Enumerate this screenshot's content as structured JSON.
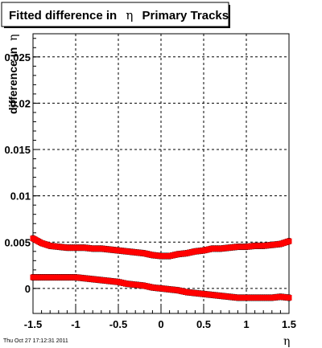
{
  "chart_data": {
    "type": "scatter",
    "title_main": "Fitted difference in",
    "title_symbol": "η",
    "title_rest": "Primary Tracks",
    "ylabel_main": "difference in",
    "ylabel_symbol": "η",
    "xlabel_symbol": "η",
    "xlim": [
      -1.5,
      1.5
    ],
    "ylim": [
      -0.0027,
      0.0275
    ],
    "grid": true,
    "x_ticks": [
      -1.5,
      -1,
      -0.5,
      0,
      0.5,
      1,
      1.5
    ],
    "x_tick_labels": [
      "-1.5",
      "-1",
      "-0.5",
      "0",
      "0.5",
      "1",
      "1.5"
    ],
    "y_ticks": [
      0,
      0.005,
      0.01,
      0.015,
      0.02,
      0.025
    ],
    "y_tick_labels": [
      "0",
      "0.005",
      "0.01",
      "0.015",
      "0.02",
      "0.025"
    ],
    "series": [
      {
        "color": "#ff0000",
        "band_color": "#000000",
        "x": [
          -1.5,
          -1.4,
          -1.3,
          -1.2,
          -1.1,
          -1.0,
          -0.9,
          -0.8,
          -0.7,
          -0.6,
          -0.5,
          -0.4,
          -0.3,
          -0.2,
          -0.1,
          0.0,
          0.1,
          0.2,
          0.3,
          0.4,
          0.5,
          0.6,
          0.7,
          0.8,
          0.9,
          1.0,
          1.1,
          1.2,
          1.3,
          1.4,
          1.5
        ],
        "y": [
          0.0054,
          0.0049,
          0.0046,
          0.0045,
          0.0044,
          0.0044,
          0.0044,
          0.0043,
          0.0043,
          0.0042,
          0.0041,
          0.004,
          0.0039,
          0.0038,
          0.0036,
          0.0035,
          0.0035,
          0.0037,
          0.0038,
          0.004,
          0.0041,
          0.0043,
          0.0043,
          0.0044,
          0.0045,
          0.0045,
          0.0046,
          0.0046,
          0.0047,
          0.0048,
          0.0051
        ]
      },
      {
        "color": "#ff0000",
        "band_color": "#000000",
        "x": [
          -1.5,
          -1.4,
          -1.3,
          -1.2,
          -1.1,
          -1.0,
          -0.9,
          -0.8,
          -0.7,
          -0.6,
          -0.5,
          -0.4,
          -0.3,
          -0.2,
          -0.1,
          0.0,
          0.1,
          0.2,
          0.3,
          0.4,
          0.5,
          0.6,
          0.7,
          0.8,
          0.9,
          1.0,
          1.1,
          1.2,
          1.3,
          1.4,
          1.5
        ],
        "y": [
          0.0012,
          0.0012,
          0.0012,
          0.0012,
          0.0012,
          0.0012,
          0.0011,
          0.001,
          0.0009,
          0.0008,
          0.0007,
          0.0005,
          0.0004,
          0.0003,
          0.0001,
          0.0,
          -0.0001,
          -0.0002,
          -0.0004,
          -0.0005,
          -0.0006,
          -0.0007,
          -0.0008,
          -0.0009,
          -0.001,
          -0.001,
          -0.001,
          -0.001,
          -0.001,
          -0.0009,
          -0.001
        ]
      }
    ]
  },
  "footer": {
    "timestamp": "Thu Oct 27 17:12:31 2011"
  }
}
